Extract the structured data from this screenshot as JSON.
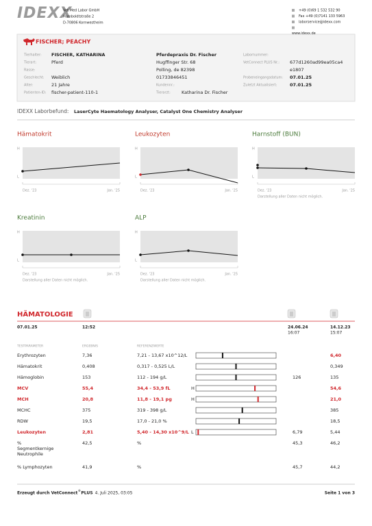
{
  "header": {
    "logo": "IDEXX",
    "company": [
      "Vet Med Labor GmbH",
      "Humboldtstraße 2",
      "D-70806 Kornwestheim"
    ],
    "contact": [
      "+49 (0)69 1 532 532 90",
      "Fax +49 (0)7141 133 5963",
      "laborservice@idexx.com",
      "www.idexx.de"
    ]
  },
  "patient": {
    "name": "FISCHER; PEACHY",
    "col1": [
      {
        "label": "Tierhalter:",
        "value": "FISCHER, KATHARINA"
      },
      {
        "label": "Tierart:",
        "value": "Pferd"
      },
      {
        "label": "Rasse:"
      },
      {
        "label": "Geschlecht:",
        "value": "Weiblich"
      },
      {
        "label": "Alter:",
        "value": "21 Jahre"
      },
      {
        "label": "Patienten-ID:",
        "value": "fischer-patient-110-1"
      }
    ],
    "col2": [
      {
        "value": "Pferdepraxis Dr. Fischer"
      },
      {
        "value": "Hugffinger Str. 68"
      },
      {
        "value": "Polling, de 82398"
      },
      {
        "value": "01733846451"
      },
      {
        "label": "Kundennr.:"
      },
      {
        "label": "Tierarzt:",
        "value": "Katharina Dr. Fischer"
      }
    ],
    "col3": [
      {
        "label": "Labornummer:"
      },
      {
        "label": "VetConnect PLUS Nr.:",
        "value": "677d1260ad99ea05ca4"
      },
      {
        "value": "e1807"
      },
      {
        "label": "Probeneingangsdatum:",
        "value": "07.01.25"
      },
      {
        "label": "Zuletzt Aktualisiert:",
        "value": "07.01.25"
      }
    ]
  },
  "report": {
    "label": "IDEXX Laborbefund:",
    "analysers": "LaserCyte Haematology Analyser, Catalyst One Chemistry Analyser"
  },
  "trend_charts": [
    {
      "title": "Hämatokrit",
      "high": "H",
      "low": "L",
      "x_start": "Dez. '23",
      "x_end": "Jan. '25"
    },
    {
      "title": "Leukozyten",
      "high": "H",
      "low": "L",
      "x_start": "Dez. '23",
      "x_end": "Jan. '25"
    },
    {
      "title": "Harnstoff (BUN)",
      "high": "H",
      "low": "L",
      "x_start": "Dez. '23",
      "x_end": "Jan. '25",
      "note": "Darstellung aller Daten nicht möglich."
    },
    {
      "title": "Kreatinin",
      "high": "H",
      "low": "L",
      "x_start": "Dez. '23",
      "x_end": "Jan. '25",
      "note": "Darstellung aller Daten nicht möglich."
    },
    {
      "title": "ALP",
      "high": "H",
      "low": "L",
      "x_start": "Dez. '23",
      "x_end": "Jan. '25",
      "note": "Darstellung aller Daten nicht möglich."
    }
  ],
  "hematology": {
    "title": "HÄMATOLOGIE",
    "date": "07.01.25",
    "time": "12:52",
    "previous": [
      {
        "date": "24.06.24",
        "time": "16:07"
      },
      {
        "date": "14.12.23",
        "time": "15:07"
      }
    ],
    "columns": [
      "TESTPARAMETER",
      "ERGEBNIS",
      "REFERENZWERTE"
    ],
    "rows": [
      {
        "name": [
          "Erythrozyten"
        ],
        "result": "7,36",
        "reference": "7,21 - 13,67 x10^12/L",
        "prev_2": "6,40",
        "prev_2_alert": true
      },
      {
        "name": [
          "Hämatokrit"
        ],
        "result": "0,408",
        "reference": "0,317 - 0,525 L/L",
        "prev_2": "0,349"
      },
      {
        "name": [
          "Hämoglobin"
        ],
        "result": "153",
        "reference": "112 - 194 g/L",
        "prev_1": "126",
        "prev_2": "135"
      },
      {
        "name": [
          "MCV"
        ],
        "result": "55,4",
        "reference": "34,4 - 53,9 fL",
        "flag": "H",
        "prev_2": "54,6",
        "prev_2_alert": true
      },
      {
        "name": [
          "MCH"
        ],
        "result": "20,8",
        "reference": "11,8 - 19,1 pg",
        "flag": "H",
        "prev_2": "21,0",
        "prev_2_alert": true
      },
      {
        "name": [
          "MCHC"
        ],
        "result": "375",
        "reference": "319 - 398 g/L",
        "prev_2": "385"
      },
      {
        "name": [
          "RDW"
        ],
        "result": "19,5",
        "reference": "17,0 - 21,0 %",
        "prev_2": "18,5"
      },
      {
        "name": [
          "Leukozyten"
        ],
        "result": "2,81",
        "reference": "5,40 - 14,30 x10^9/L",
        "flag": "L",
        "prev_1": "6,79",
        "prev_2": "5,44"
      },
      {
        "name": [
          "%",
          "Segmentkernige",
          "Neutrophile"
        ],
        "result": "42,5",
        "reference": "%",
        "prev_1": "45,3",
        "prev_2": "46,2"
      },
      {
        "name": [
          "% Lymphozyten"
        ],
        "result": "41,9",
        "reference": "%",
        "prev_1": "45,7",
        "prev_2": "44,2"
      }
    ]
  },
  "footer": {
    "generated": "Erzeugt durch VetConnect",
    "trademark": "®",
    "product": "PLUS",
    "date": "4. Juli 2025, 03:05",
    "page": "Seite 1 von 3"
  }
}
